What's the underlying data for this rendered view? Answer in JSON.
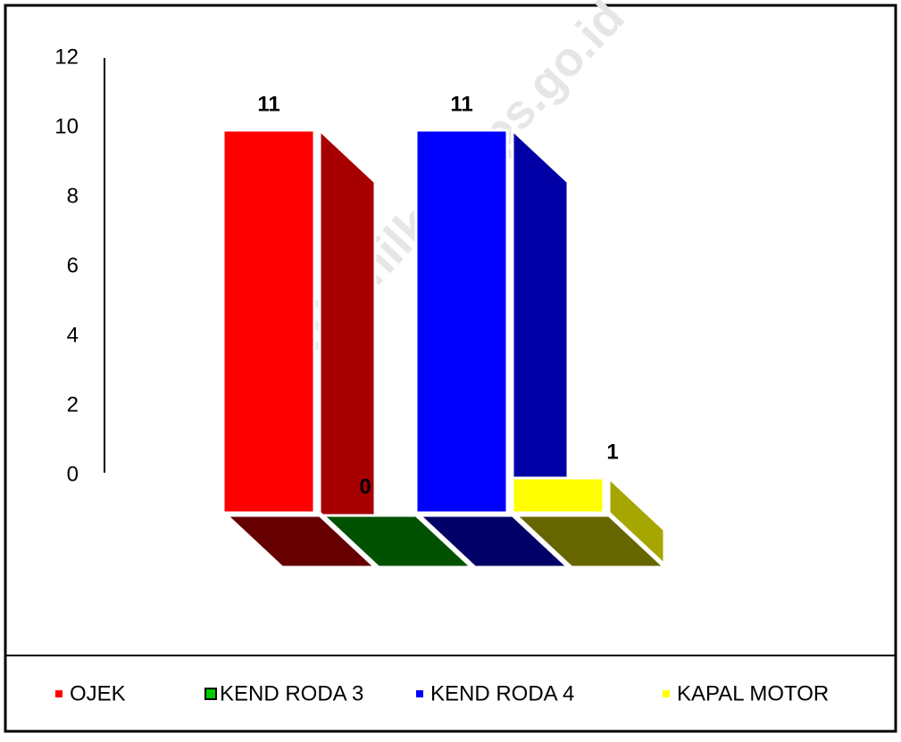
{
  "chart_data": {
    "type": "bar3d",
    "watermark": "http://rohilkab.bps.go.id",
    "series": [
      {
        "name": "OJEK",
        "color": "#ff0000",
        "values": [
          11
        ]
      },
      {
        "name": "KEND RODA 3",
        "color": "#00cc00",
        "values": [
          0
        ]
      },
      {
        "name": "KEND RODA 4",
        "color": "#0000ff",
        "values": [
          11
        ]
      },
      {
        "name": "KAPAL MOTOR",
        "color": "#ffff00",
        "values": [
          1
        ]
      }
    ],
    "ylim": [
      0,
      12
    ],
    "yticks": [
      0,
      2,
      4,
      6,
      8,
      10,
      12
    ],
    "legend": "bottom"
  }
}
